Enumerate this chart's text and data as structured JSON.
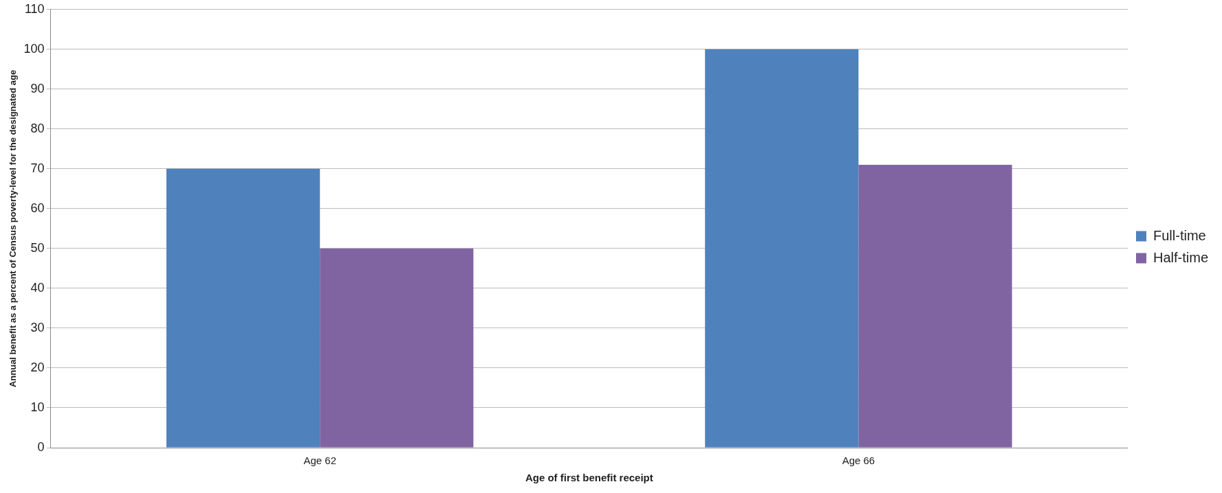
{
  "chart_data": {
    "type": "bar",
    "xlabel": "Age of first benefit receipt",
    "ylabel": "Annual benefit as a percent of Census poverty-level for the designated age",
    "categories": [
      "Age 62",
      "Age 66"
    ],
    "series": [
      {
        "name": "Full-time",
        "color": "#4f81bd",
        "values": [
          70,
          100
        ]
      },
      {
        "name": "Half-time",
        "color": "#8064a2",
        "values": [
          50,
          71
        ]
      }
    ],
    "ylim": [
      0,
      110
    ],
    "yticks": [
      0,
      10,
      20,
      30,
      40,
      50,
      60,
      70,
      80,
      90,
      100,
      110
    ],
    "grid": "y",
    "legend": "right"
  }
}
